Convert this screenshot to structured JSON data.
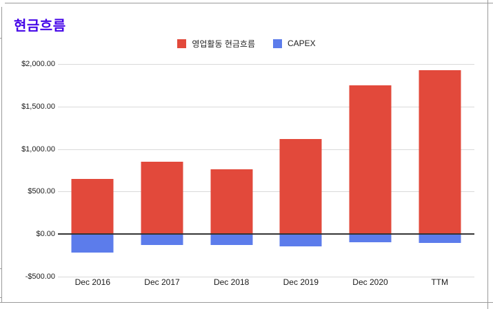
{
  "header": {
    "title": "현금흐름",
    "title_color": "#4405E8"
  },
  "chart_data": {
    "type": "bar",
    "title": "현금흐름",
    "categories": [
      "Dec 2016",
      "Dec 2017",
      "Dec 2018",
      "Dec 2019",
      "Dec 2020",
      "TTM"
    ],
    "series": [
      {
        "name": "영업활동 현금흐름",
        "color": "#E2493B",
        "values": [
          650,
          850,
          762,
          1116,
          1748,
          1926
        ]
      },
      {
        "name": "CAPEX",
        "color": "#5C7CEB",
        "values": [
          -218,
          -132,
          -128,
          -142,
          -96,
          -104
        ]
      }
    ],
    "xlabel": "",
    "ylabel": "",
    "ylim": [
      -500,
      2000
    ],
    "grid": true,
    "legend_position": "top-center",
    "y_ticks": [
      {
        "label": "$2,000.00",
        "value": 2000
      },
      {
        "label": "$1,500.00",
        "value": 1500
      },
      {
        "label": "$1,000.00",
        "value": 1000
      },
      {
        "label": "$500.00",
        "value": 500
      },
      {
        "label": "$0.00",
        "value": 0
      },
      {
        "label": "-$500.00",
        "value": -500
      }
    ]
  },
  "colors": {
    "gridline": "#d9d9d9",
    "zero_axis": "#333333",
    "frame": "#999999",
    "tick_text": "#1a1a1a"
  }
}
